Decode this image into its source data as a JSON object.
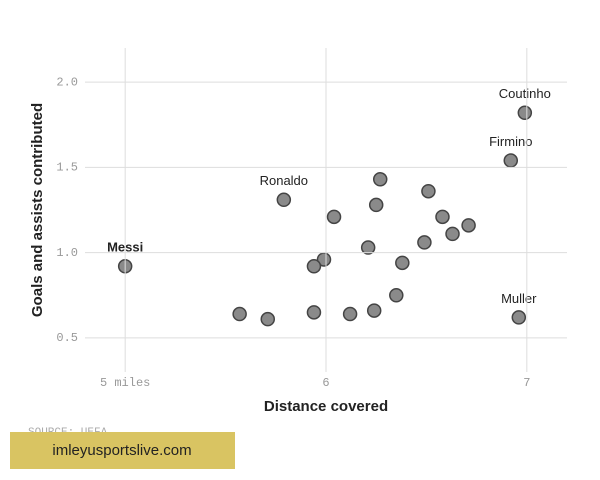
{
  "chart_data": {
    "type": "scatter",
    "x_label": "Distance covered",
    "y_label": "Goals and assists contributed",
    "source": "SOURCE: UEFA",
    "watermark": "imleyusportslive.com",
    "xlim": [
      4.8,
      7.2
    ],
    "ylim": [
      0.3,
      2.2
    ],
    "xticks": [
      {
        "value": 5,
        "label": "5 miles"
      },
      6,
      7
    ],
    "yticks": [
      {
        "value": 2,
        "label": "2.0"
      },
      1.5,
      {
        "value": 1,
        "label": "1.0"
      },
      0.5
    ],
    "grid": true,
    "color": "#8a8a8a",
    "series": [
      {
        "x": [
          5.0,
          5.79,
          6.99,
          6.92,
          6.96,
          5.57,
          5.71,
          5.94,
          5.94,
          5.99,
          6.04,
          6.12,
          6.21,
          6.24,
          6.25,
          6.27,
          6.35,
          6.38,
          6.49,
          6.51,
          6.58,
          6.63,
          6.71
        ],
        "values": [
          0.92,
          1.31,
          1.82,
          1.54,
          0.62,
          0.64,
          0.61,
          0.65,
          0.92,
          0.96,
          1.21,
          0.64,
          1.03,
          0.66,
          1.28,
          1.43,
          0.75,
          0.94,
          1.06,
          1.36,
          1.21,
          1.11,
          1.16
        ],
        "point_labels": [
          "Messi",
          "Ronaldo",
          "Coutinho",
          "Firmino",
          "Muller",
          null,
          null,
          null,
          null,
          null,
          null,
          null,
          null,
          null,
          null,
          null,
          null,
          null,
          null,
          null,
          null,
          null,
          null
        ]
      }
    ]
  }
}
